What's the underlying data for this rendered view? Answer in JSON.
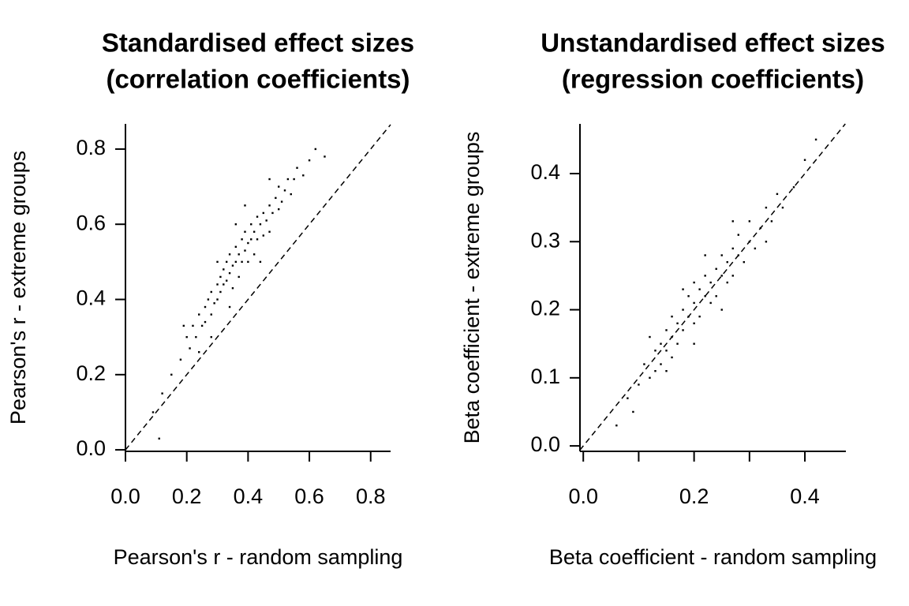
{
  "chart_data": [
    {
      "type": "scatter",
      "title": [
        "Standardised effect sizes",
        "(correlation coefficients)"
      ],
      "x_label": "Pearson's r - random sampling",
      "y_label": "Pearson's r - extreme groups",
      "color": "#000000",
      "xlim": [
        0,
        0.865
      ],
      "ylim": [
        -0.004,
        0.867
      ],
      "xticks": [
        {
          "value": 0,
          "label": "0.0"
        },
        0.2,
        0.4,
        0.6,
        0.8
      ],
      "yticks": [
        {
          "value": 0,
          "label": "0.0"
        },
        0.2,
        0.4,
        0.6,
        0.8
      ],
      "x": [
        0.12,
        0.15,
        0.18,
        0.2,
        0.21,
        0.22,
        0.23,
        0.24,
        0.25,
        0.26,
        0.26,
        0.27,
        0.28,
        0.28,
        0.29,
        0.3,
        0.3,
        0.31,
        0.31,
        0.32,
        0.32,
        0.33,
        0.33,
        0.34,
        0.34,
        0.35,
        0.35,
        0.36,
        0.36,
        0.37,
        0.37,
        0.38,
        0.38,
        0.39,
        0.39,
        0.4,
        0.4,
        0.41,
        0.41,
        0.42,
        0.42,
        0.43,
        0.43,
        0.44,
        0.45,
        0.45,
        0.46,
        0.47,
        0.47,
        0.48,
        0.49,
        0.5,
        0.5,
        0.51,
        0.52,
        0.53,
        0.54,
        0.55,
        0.56,
        0.58,
        0.6,
        0.62,
        0.65,
        0.28,
        0.34,
        0.24,
        0.44,
        0.19,
        0.3,
        0.39,
        0.11,
        0.09,
        0.36,
        0.47
      ],
      "values": [
        0.15,
        0.2,
        0.24,
        0.3,
        0.27,
        0.33,
        0.3,
        0.36,
        0.33,
        0.38,
        0.34,
        0.4,
        0.36,
        0.42,
        0.39,
        0.44,
        0.4,
        0.46,
        0.42,
        0.48,
        0.44,
        0.5,
        0.45,
        0.47,
        0.52,
        0.49,
        0.43,
        0.54,
        0.5,
        0.46,
        0.52,
        0.56,
        0.5,
        0.53,
        0.58,
        0.55,
        0.5,
        0.6,
        0.56,
        0.52,
        0.58,
        0.62,
        0.56,
        0.6,
        0.57,
        0.63,
        0.61,
        0.65,
        0.58,
        0.63,
        0.67,
        0.64,
        0.7,
        0.66,
        0.69,
        0.72,
        0.68,
        0.72,
        0.75,
        0.73,
        0.77,
        0.8,
        0.78,
        0.3,
        0.38,
        0.26,
        0.5,
        0.33,
        0.5,
        0.65,
        0.03,
        0.1,
        0.6,
        0.72
      ]
    },
    {
      "type": "scatter",
      "title": [
        "Unstandardised effect sizes",
        "(regression coefficients)"
      ],
      "x_label": "Beta coefficient - random sampling",
      "y_label": "Beta coefficient - extreme groups",
      "color": "#000000",
      "xlim": [
        -0.006,
        0.474
      ],
      "ylim": [
        -0.008,
        0.473
      ],
      "xticks": [
        {
          "value": 0,
          "label": "0.0"
        },
        0.2,
        0.4
      ],
      "xminor_ticks": [
        0.1,
        0.3
      ],
      "yticks": [
        {
          "value": 0,
          "label": "0.0"
        },
        0.1,
        0.2,
        0.3,
        0.4
      ],
      "x": [
        0.06,
        0.08,
        0.1,
        0.11,
        0.12,
        0.13,
        0.13,
        0.14,
        0.14,
        0.15,
        0.15,
        0.16,
        0.16,
        0.17,
        0.17,
        0.18,
        0.18,
        0.19,
        0.19,
        0.2,
        0.2,
        0.21,
        0.21,
        0.22,
        0.22,
        0.23,
        0.23,
        0.24,
        0.24,
        0.25,
        0.25,
        0.26,
        0.26,
        0.27,
        0.27,
        0.28,
        0.28,
        0.29,
        0.3,
        0.3,
        0.31,
        0.32,
        0.33,
        0.34,
        0.35,
        0.36,
        0.38,
        0.4,
        0.42,
        0.15,
        0.18,
        0.2,
        0.22,
        0.25,
        0.27,
        0.12,
        0.09,
        0.33,
        0.16,
        0.2
      ],
      "values": [
        0.03,
        0.07,
        0.09,
        0.12,
        0.1,
        0.14,
        0.11,
        0.15,
        0.12,
        0.17,
        0.14,
        0.16,
        0.19,
        0.15,
        0.18,
        0.2,
        0.17,
        0.19,
        0.22,
        0.18,
        0.21,
        0.23,
        0.19,
        0.22,
        0.25,
        0.21,
        0.24,
        0.26,
        0.22,
        0.25,
        0.28,
        0.24,
        0.27,
        0.29,
        0.25,
        0.28,
        0.31,
        0.27,
        0.3,
        0.33,
        0.29,
        0.32,
        0.35,
        0.33,
        0.37,
        0.35,
        0.38,
        0.42,
        0.45,
        0.11,
        0.23,
        0.15,
        0.28,
        0.2,
        0.33,
        0.16,
        0.05,
        0.3,
        0.13,
        0.24
      ]
    }
  ]
}
